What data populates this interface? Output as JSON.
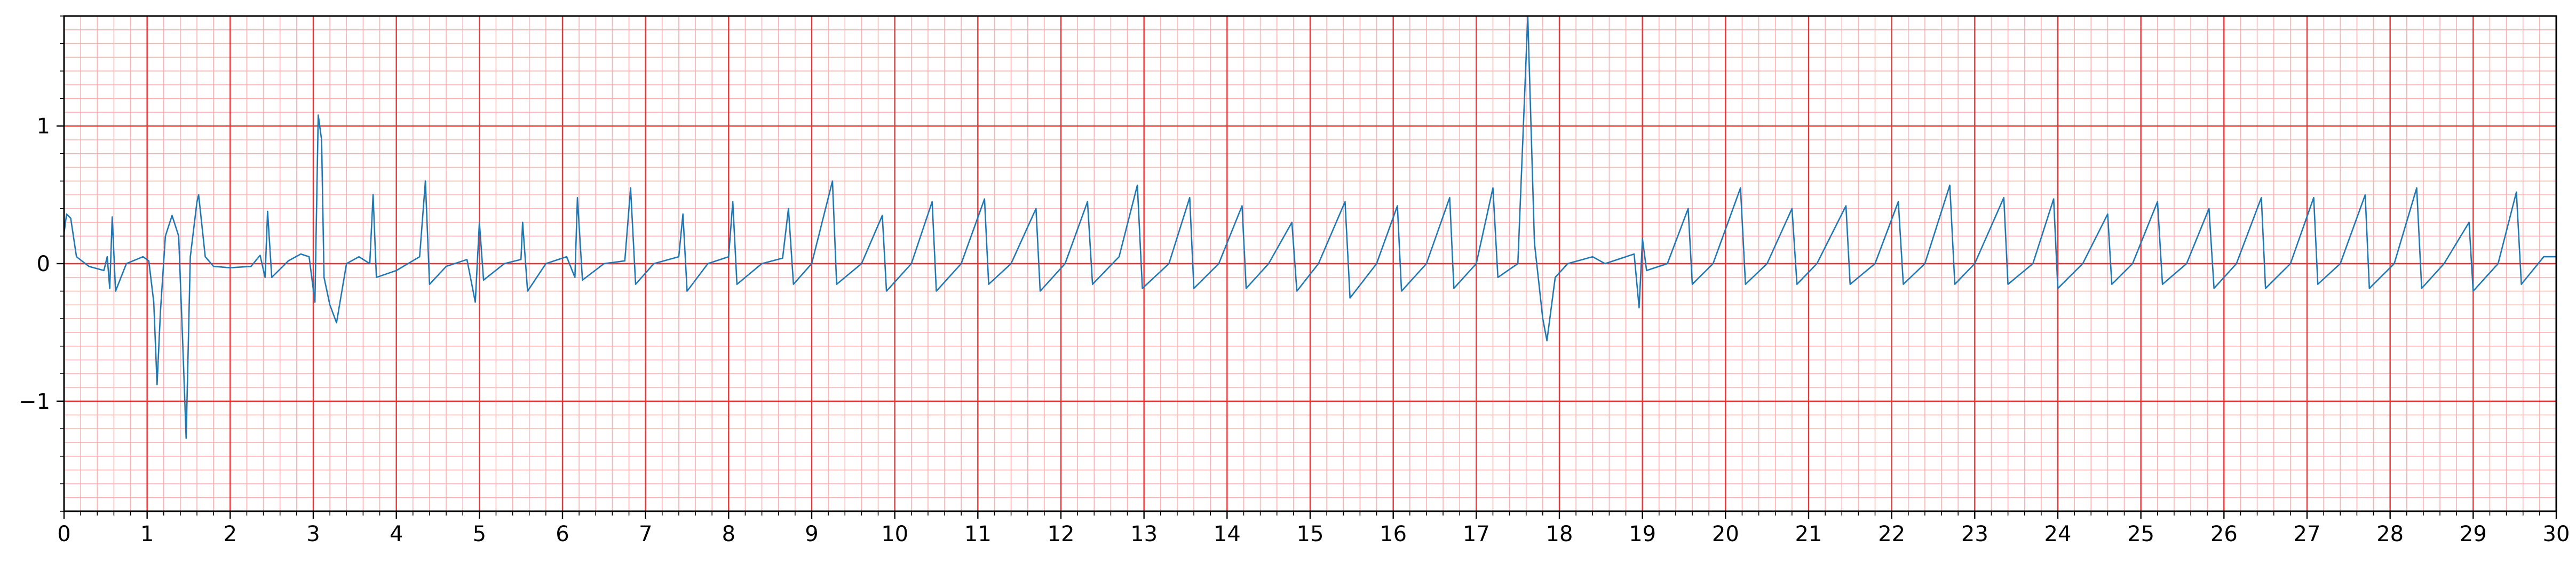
{
  "chart_data": {
    "type": "line",
    "title": "",
    "xlabel": "",
    "ylabel": "",
    "xlim": [
      0,
      30
    ],
    "ylim": [
      -1.8,
      1.8
    ],
    "x_ticks": [
      0,
      1,
      2,
      3,
      4,
      5,
      6,
      7,
      8,
      9,
      10,
      11,
      12,
      13,
      14,
      15,
      16,
      17,
      18,
      19,
      20,
      21,
      22,
      23,
      24,
      25,
      26,
      27,
      28,
      29,
      30
    ],
    "x_tick_labels": [
      "0",
      "1",
      "2",
      "3",
      "4",
      "5",
      "6",
      "7",
      "8",
      "9",
      "10",
      "11",
      "12",
      "13",
      "14",
      "15",
      "16",
      "17",
      "18",
      "19",
      "20",
      "21",
      "22",
      "23",
      "24",
      "25",
      "26",
      "27",
      "28",
      "29",
      "30"
    ],
    "y_ticks": [
      -1,
      0,
      1
    ],
    "y_tick_labels": [
      "−1",
      "0",
      "1"
    ],
    "grid": true,
    "grid_style": "ecg-paper",
    "major_grid_x": 1,
    "major_grid_y": 1,
    "minor_grid_x": 0.2,
    "minor_grid_y": 0.1,
    "legend": "none",
    "colors": {
      "signal": "#1f77b4",
      "major_grid": "#ee3333",
      "minor_grid": "#ffb0b0",
      "axes": "#000000"
    },
    "series": [
      {
        "description_of_values": "ECG voltage trace, sampled values as [time_s, amplitude]",
        "sample_points": [
          [
            0.0,
            0.22
          ],
          [
            0.03,
            0.36
          ],
          [
            0.08,
            0.33
          ],
          [
            0.15,
            0.05
          ],
          [
            0.3,
            -0.02
          ],
          [
            0.48,
            -0.05
          ],
          [
            0.52,
            0.05
          ],
          [
            0.55,
            -0.18
          ],
          [
            0.58,
            0.34
          ],
          [
            0.62,
            -0.2
          ],
          [
            0.75,
            0.0
          ],
          [
            0.95,
            0.05
          ],
          [
            1.02,
            0.02
          ],
          [
            1.08,
            -0.28
          ],
          [
            1.12,
            -0.88
          ],
          [
            1.16,
            -0.35
          ],
          [
            1.22,
            0.2
          ],
          [
            1.3,
            0.35
          ],
          [
            1.38,
            0.2
          ],
          [
            1.43,
            -0.6
          ],
          [
            1.47,
            -1.27
          ],
          [
            1.52,
            0.05
          ],
          [
            1.6,
            0.45
          ],
          [
            1.62,
            0.5
          ],
          [
            1.7,
            0.05
          ],
          [
            1.8,
            -0.02
          ],
          [
            2.0,
            -0.03
          ],
          [
            2.25,
            -0.02
          ],
          [
            2.36,
            0.06
          ],
          [
            2.42,
            -0.1
          ],
          [
            2.45,
            0.38
          ],
          [
            2.5,
            -0.1
          ],
          [
            2.7,
            0.02
          ],
          [
            2.85,
            0.07
          ],
          [
            2.95,
            0.05
          ],
          [
            3.02,
            -0.28
          ],
          [
            3.06,
            1.08
          ],
          [
            3.1,
            0.9
          ],
          [
            3.13,
            -0.1
          ],
          [
            3.2,
            -0.3
          ],
          [
            3.28,
            -0.43
          ],
          [
            3.4,
            0.0
          ],
          [
            3.55,
            0.05
          ],
          [
            3.68,
            0.0
          ],
          [
            3.72,
            0.5
          ],
          [
            3.76,
            -0.1
          ],
          [
            4.0,
            -0.05
          ],
          [
            4.28,
            0.05
          ],
          [
            4.35,
            0.6
          ],
          [
            4.4,
            -0.15
          ],
          [
            4.6,
            -0.02
          ],
          [
            4.85,
            0.03
          ],
          [
            4.95,
            -0.28
          ],
          [
            5.0,
            0.3
          ],
          [
            5.05,
            -0.12
          ],
          [
            5.3,
            0.0
          ],
          [
            5.5,
            0.03
          ],
          [
            5.52,
            0.3
          ],
          [
            5.58,
            -0.2
          ],
          [
            5.8,
            0.0
          ],
          [
            6.05,
            0.05
          ],
          [
            6.15,
            -0.1
          ],
          [
            6.18,
            0.48
          ],
          [
            6.24,
            -0.12
          ],
          [
            6.5,
            0.0
          ],
          [
            6.75,
            0.02
          ],
          [
            6.82,
            0.55
          ],
          [
            6.88,
            -0.15
          ],
          [
            7.1,
            0.0
          ],
          [
            7.4,
            0.05
          ],
          [
            7.45,
            0.36
          ],
          [
            7.5,
            -0.2
          ],
          [
            7.75,
            0.0
          ],
          [
            8.0,
            0.05
          ],
          [
            8.05,
            0.45
          ],
          [
            8.1,
            -0.15
          ],
          [
            8.4,
            0.0
          ],
          [
            8.65,
            0.04
          ],
          [
            8.72,
            0.4
          ],
          [
            8.78,
            -0.15
          ],
          [
            9.0,
            0.0
          ],
          [
            9.25,
            0.6
          ],
          [
            9.3,
            -0.15
          ],
          [
            9.6,
            0.0
          ],
          [
            9.85,
            0.35
          ],
          [
            9.9,
            -0.2
          ],
          [
            10.2,
            0.0
          ],
          [
            10.45,
            0.45
          ],
          [
            10.5,
            -0.2
          ],
          [
            10.8,
            0.0
          ],
          [
            11.08,
            0.47
          ],
          [
            11.13,
            -0.15
          ],
          [
            11.4,
            0.0
          ],
          [
            11.7,
            0.4
          ],
          [
            11.75,
            -0.2
          ],
          [
            12.05,
            0.0
          ],
          [
            12.32,
            0.45
          ],
          [
            12.38,
            -0.15
          ],
          [
            12.7,
            0.05
          ],
          [
            12.92,
            0.57
          ],
          [
            12.98,
            -0.18
          ],
          [
            13.3,
            0.0
          ],
          [
            13.55,
            0.48
          ],
          [
            13.6,
            -0.18
          ],
          [
            13.9,
            0.0
          ],
          [
            14.18,
            0.42
          ],
          [
            14.23,
            -0.18
          ],
          [
            14.5,
            0.0
          ],
          [
            14.78,
            0.3
          ],
          [
            14.84,
            -0.2
          ],
          [
            15.1,
            0.0
          ],
          [
            15.42,
            0.45
          ],
          [
            15.48,
            -0.25
          ],
          [
            15.8,
            0.0
          ],
          [
            16.05,
            0.42
          ],
          [
            16.1,
            -0.2
          ],
          [
            16.4,
            0.0
          ],
          [
            16.68,
            0.48
          ],
          [
            16.73,
            -0.18
          ],
          [
            17.0,
            0.0
          ],
          [
            17.2,
            0.55
          ],
          [
            17.26,
            -0.1
          ],
          [
            17.5,
            0.0
          ],
          [
            17.62,
            1.8
          ],
          [
            17.7,
            0.15
          ],
          [
            17.8,
            -0.4
          ],
          [
            17.85,
            -0.56
          ],
          [
            17.95,
            -0.1
          ],
          [
            18.1,
            0.0
          ],
          [
            18.4,
            0.05
          ],
          [
            18.55,
            0.0
          ],
          [
            18.9,
            0.07
          ],
          [
            18.96,
            -0.32
          ],
          [
            19.0,
            0.18
          ],
          [
            19.05,
            -0.05
          ],
          [
            19.3,
            0.0
          ],
          [
            19.55,
            0.4
          ],
          [
            19.6,
            -0.15
          ],
          [
            19.85,
            0.0
          ],
          [
            20.18,
            0.55
          ],
          [
            20.24,
            -0.15
          ],
          [
            20.5,
            0.0
          ],
          [
            20.8,
            0.4
          ],
          [
            20.86,
            -0.15
          ],
          [
            21.1,
            0.0
          ],
          [
            21.45,
            0.42
          ],
          [
            21.5,
            -0.15
          ],
          [
            21.8,
            0.0
          ],
          [
            22.08,
            0.45
          ],
          [
            22.14,
            -0.15
          ],
          [
            22.4,
            0.0
          ],
          [
            22.7,
            0.57
          ],
          [
            22.76,
            -0.15
          ],
          [
            23.0,
            0.0
          ],
          [
            23.35,
            0.48
          ],
          [
            23.4,
            -0.15
          ],
          [
            23.7,
            0.0
          ],
          [
            23.95,
            0.47
          ],
          [
            24.0,
            -0.18
          ],
          [
            24.3,
            0.0
          ],
          [
            24.6,
            0.36
          ],
          [
            24.65,
            -0.15
          ],
          [
            24.9,
            0.0
          ],
          [
            25.2,
            0.45
          ],
          [
            25.26,
            -0.15
          ],
          [
            25.55,
            0.0
          ],
          [
            25.82,
            0.4
          ],
          [
            25.88,
            -0.18
          ],
          [
            26.15,
            0.0
          ],
          [
            26.45,
            0.48
          ],
          [
            26.5,
            -0.18
          ],
          [
            26.8,
            0.0
          ],
          [
            27.08,
            0.48
          ],
          [
            27.13,
            -0.15
          ],
          [
            27.4,
            0.0
          ],
          [
            27.7,
            0.5
          ],
          [
            27.75,
            -0.18
          ],
          [
            28.05,
            0.0
          ],
          [
            28.32,
            0.55
          ],
          [
            28.38,
            -0.18
          ],
          [
            28.65,
            0.0
          ],
          [
            28.95,
            0.3
          ],
          [
            29.0,
            -0.2
          ],
          [
            29.3,
            0.0
          ],
          [
            29.52,
            0.52
          ],
          [
            29.58,
            -0.15
          ],
          [
            29.85,
            0.05
          ],
          [
            30.0,
            0.05
          ]
        ]
      }
    ]
  }
}
